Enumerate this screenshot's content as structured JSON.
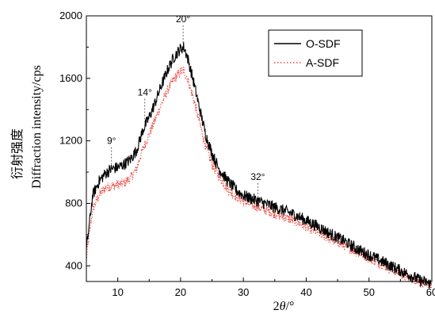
{
  "chart_data": {
    "type": "line",
    "xlabel_prefix": "2",
    "xlabel_symbol": "θ",
    "xlabel_suffix": "/°",
    "ylabel_cn": "衍射强度",
    "ylabel_en": "Diffraction  intensity/cps",
    "xlim": [
      5,
      60
    ],
    "ylim": [
      300,
      2000
    ],
    "x_ticks": [
      10,
      20,
      30,
      40,
      50,
      60
    ],
    "x_tick_labels": [
      "10",
      "20",
      "30",
      "40",
      "50",
      "60"
    ],
    "y_ticks": [
      400,
      800,
      1200,
      1600,
      2000
    ],
    "y_tick_labels": [
      "400",
      "800",
      "1200",
      "1600",
      "2000"
    ],
    "grid": false,
    "legend_position": "top-right",
    "series": [
      {
        "name": "O-SDF",
        "color": "#000000",
        "style": "solid",
        "x": [
          5,
          6,
          7,
          8,
          9,
          10,
          11,
          12,
          13,
          14,
          15,
          16,
          17,
          18,
          19,
          20,
          20.5,
          21,
          22,
          23,
          24,
          25,
          26,
          27,
          28,
          29,
          30,
          32,
          34,
          36,
          38,
          40,
          42,
          44,
          46,
          48,
          50,
          52,
          54,
          56,
          58,
          60
        ],
        "y": [
          500,
          850,
          940,
          990,
          1020,
          1030,
          1050,
          1080,
          1140,
          1270,
          1350,
          1450,
          1560,
          1660,
          1740,
          1790,
          1800,
          1750,
          1590,
          1410,
          1240,
          1120,
          1030,
          970,
          920,
          880,
          850,
          820,
          790,
          760,
          730,
          690,
          650,
          600,
          560,
          510,
          470,
          430,
          390,
          350,
          310,
          280
        ]
      },
      {
        "name": "A-SDF",
        "color": "#e8453c",
        "style": "dotted",
        "x": [
          5,
          6,
          7,
          8,
          9,
          10,
          11,
          12,
          13,
          14,
          15,
          16,
          17,
          18,
          19,
          20,
          20.5,
          21,
          22,
          23,
          24,
          25,
          26,
          27,
          28,
          29,
          30,
          32,
          34,
          36,
          38,
          40,
          42,
          44,
          46,
          48,
          50,
          52,
          54,
          56,
          58,
          60
        ],
        "y": [
          450,
          760,
          850,
          900,
          910,
          920,
          930,
          960,
          1020,
          1150,
          1240,
          1340,
          1440,
          1530,
          1600,
          1640,
          1650,
          1610,
          1480,
          1320,
          1160,
          1050,
          980,
          920,
          870,
          840,
          810,
          780,
          750,
          720,
          690,
          650,
          610,
          570,
          530,
          490,
          450,
          410,
          370,
          330,
          300,
          270
        ]
      }
    ],
    "annotations": [
      {
        "text": "9°",
        "x": 9,
        "y_top": 1180,
        "y_bottom": 1040
      },
      {
        "text": "14°",
        "x": 14.3,
        "y_top": 1490,
        "y_bottom": 1300
      },
      {
        "text": "20°",
        "x": 20.4,
        "y_top": 1960,
        "y_bottom": 1820
      },
      {
        "text": "32°",
        "x": 32.3,
        "y_top": 950,
        "y_bottom": 830
      }
    ]
  }
}
